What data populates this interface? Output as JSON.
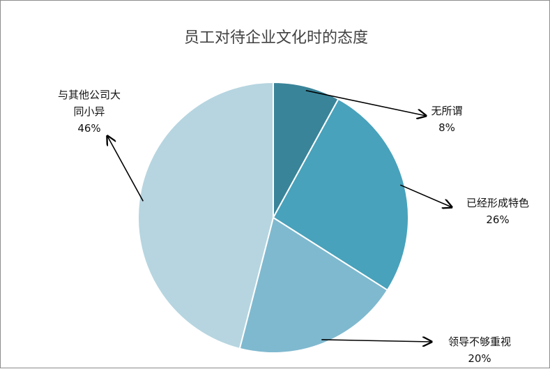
{
  "chart_data": {
    "type": "pie",
    "title": "员工对待企业文化时的态度",
    "slices": [
      {
        "label": "无所谓",
        "value": 8,
        "value_label": "8%",
        "color": "#3a8499"
      },
      {
        "label": "已经形成特色",
        "value": 26,
        "value_label": "26%",
        "color": "#48a2bb"
      },
      {
        "label": "领导不够重视",
        "value": 20,
        "value_label": "20%",
        "color": "#7fb9cf"
      },
      {
        "label": "与其他公司大同小异",
        "label_lines": [
          "与其他公司大",
          "同小异"
        ],
        "value": 46,
        "value_label": "46%",
        "color": "#b6d5e0"
      }
    ],
    "start_angle_deg": 0,
    "direction": "clockwise",
    "legend": "none"
  }
}
